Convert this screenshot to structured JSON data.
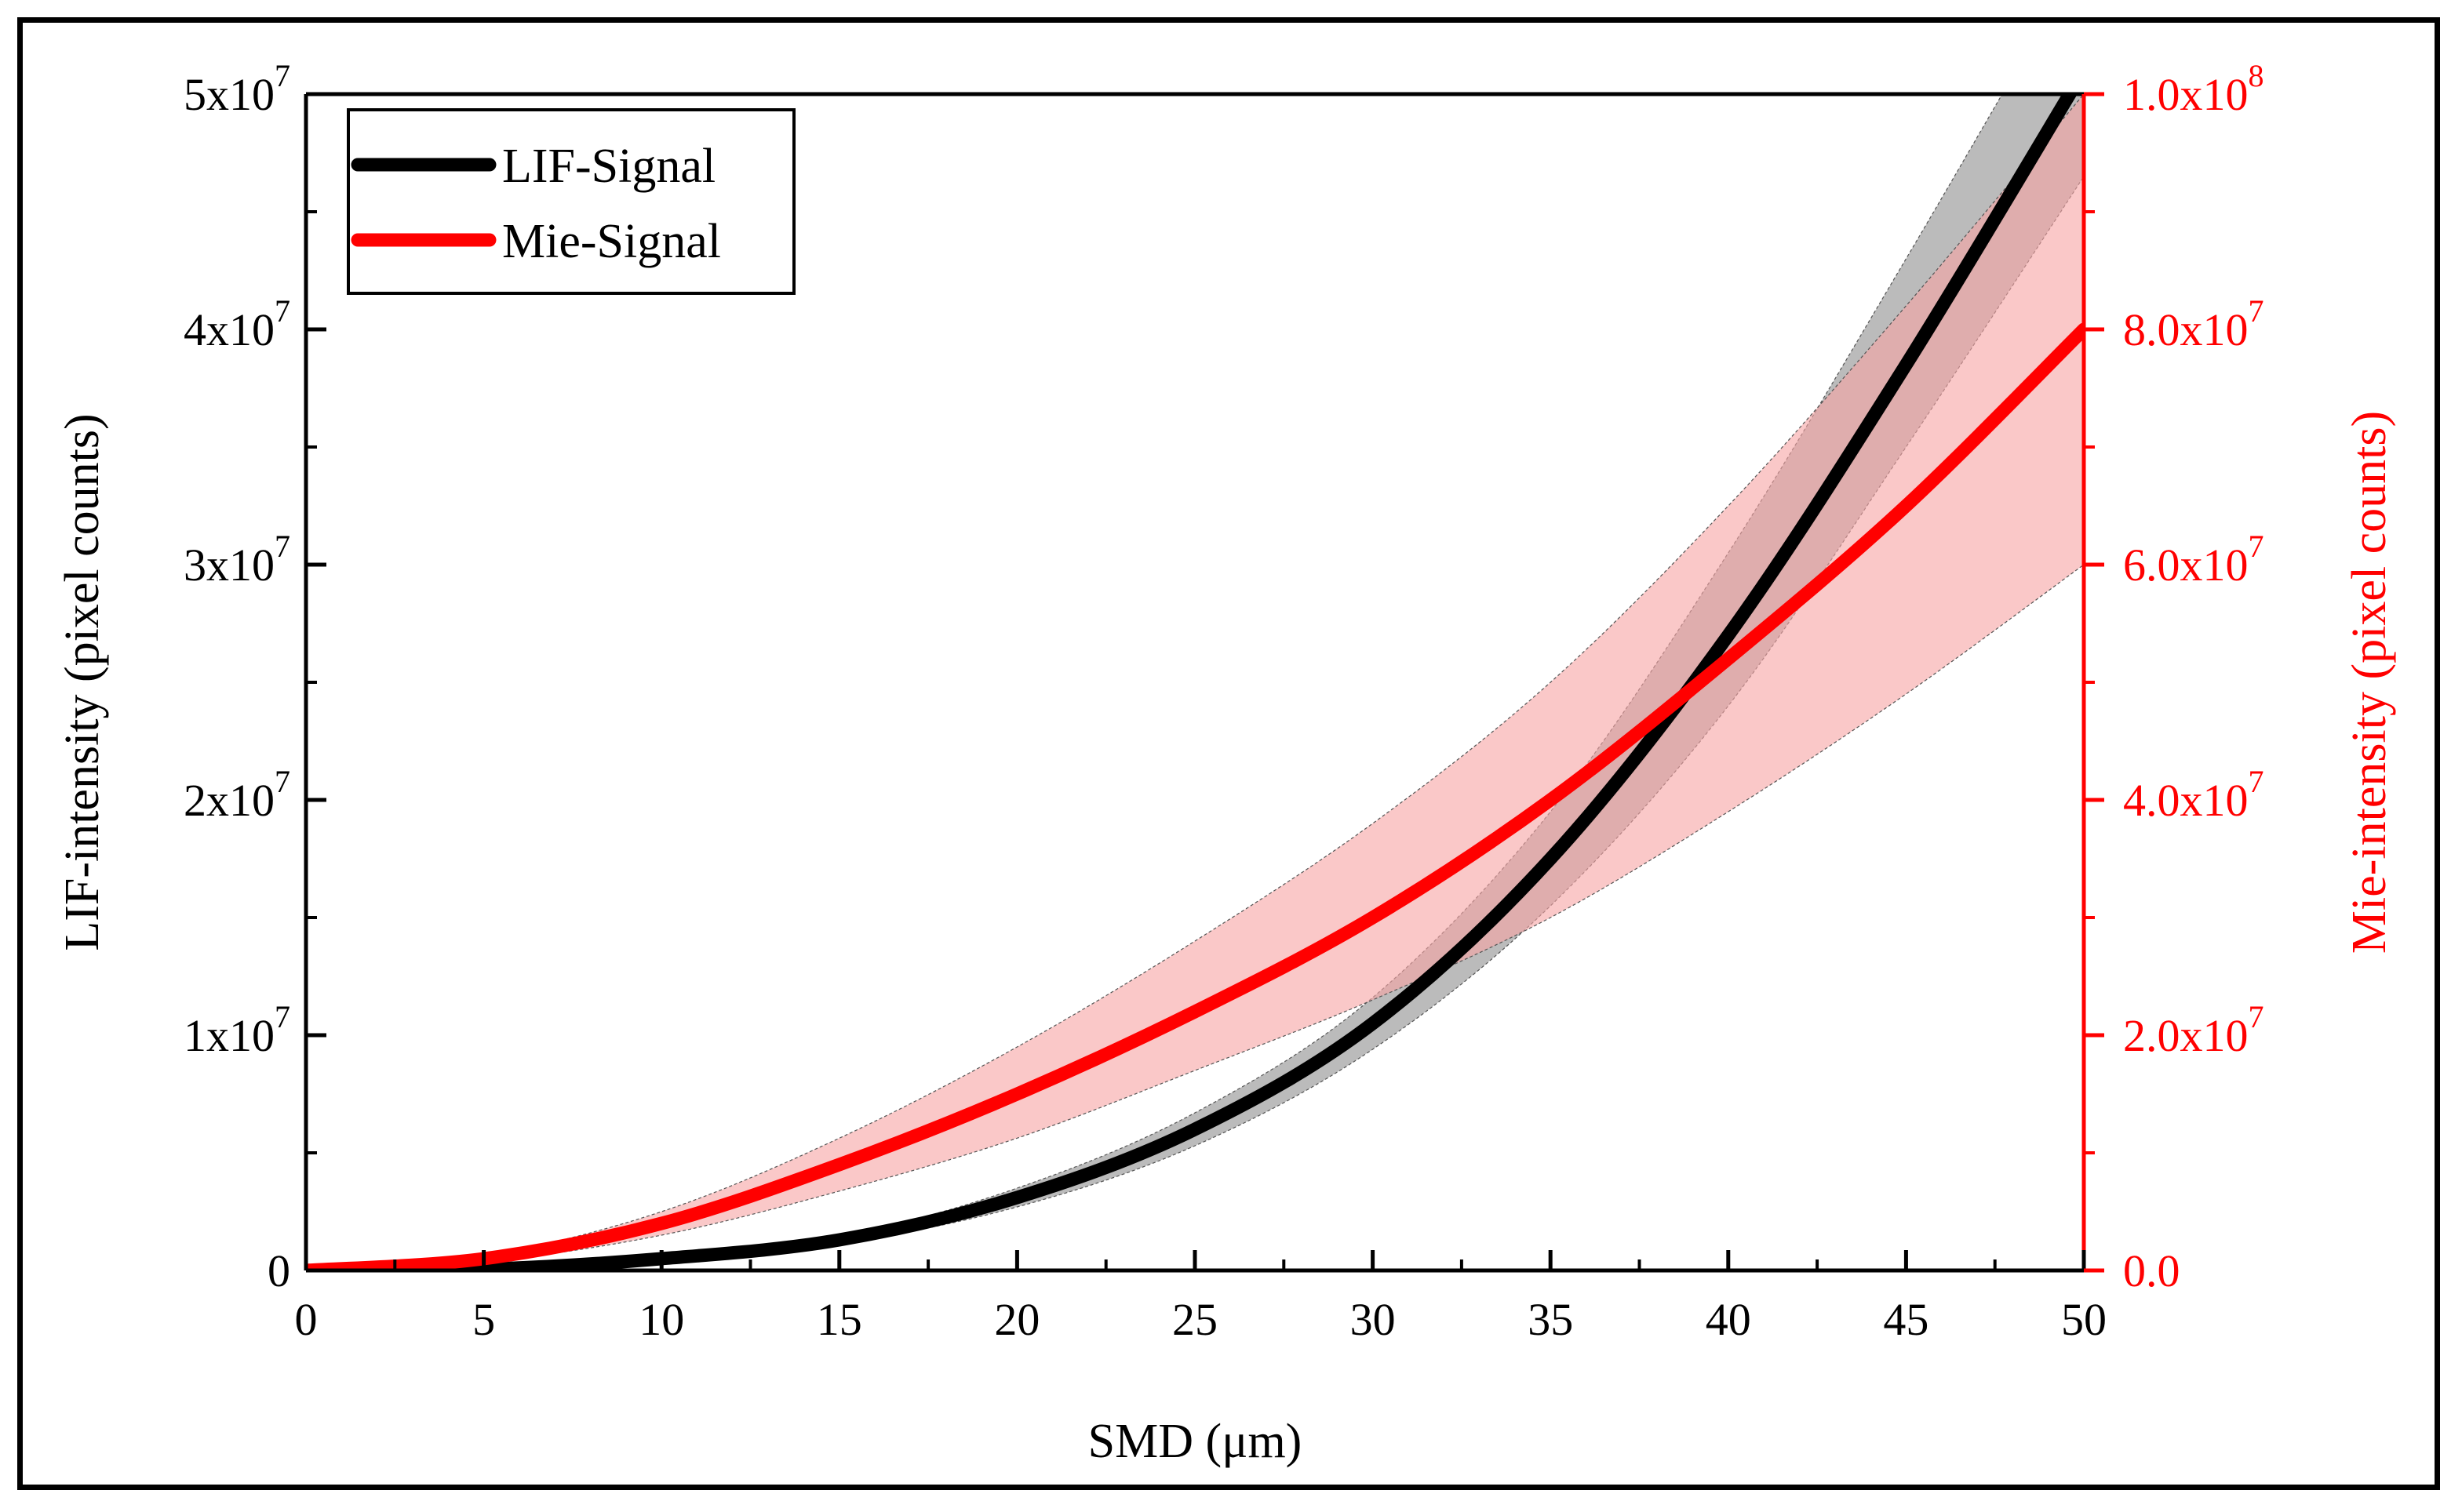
{
  "chart_data": {
    "type": "line",
    "x_axis": {
      "label": "SMD (μm)",
      "range": [
        0,
        50
      ],
      "ticks": [
        0,
        5,
        10,
        15,
        20,
        25,
        30,
        35,
        40,
        45,
        50
      ],
      "tick_labels": [
        "0",
        "5",
        "10",
        "15",
        "20",
        "25",
        "30",
        "35",
        "40",
        "45",
        "50"
      ]
    },
    "y_left_axis": {
      "label": "LIF-intensity (pixel counts)",
      "range": [
        0,
        50000000
      ],
      "ticks": [
        0,
        10000000,
        20000000,
        30000000,
        40000000,
        50000000
      ],
      "tick_labels": [
        {
          "mantissa": "0",
          "exp": ""
        },
        {
          "mantissa": "1x10",
          "exp": "7"
        },
        {
          "mantissa": "2x10",
          "exp": "7"
        },
        {
          "mantissa": "3x10",
          "exp": "7"
        },
        {
          "mantissa": "4x10",
          "exp": "7"
        },
        {
          "mantissa": "5x10",
          "exp": "7"
        }
      ],
      "color": "#000000"
    },
    "y_right_axis": {
      "label": "Mie-intensity (pixel counts)",
      "range": [
        0,
        100000000
      ],
      "ticks": [
        0,
        20000000,
        40000000,
        60000000,
        80000000,
        100000000
      ],
      "tick_labels": [
        {
          "mantissa": "0.0",
          "exp": ""
        },
        {
          "mantissa": "2.0x10",
          "exp": "7"
        },
        {
          "mantissa": "4.0x10",
          "exp": "7"
        },
        {
          "mantissa": "6.0x10",
          "exp": "7"
        },
        {
          "mantissa": "8.0x10",
          "exp": "7"
        },
        {
          "mantissa": "1.0x10",
          "exp": "8"
        }
      ],
      "color": "#ff0000"
    },
    "series": [
      {
        "name": "LIF-Signal",
        "axis": "left",
        "color": "#000000",
        "band_color": "#b4b4b4",
        "x": [
          0,
          5,
          10,
          15,
          20,
          25,
          30,
          35,
          40,
          45,
          50
        ],
        "y": [
          0,
          50000,
          500000,
          1300000,
          3100000,
          6000000,
          10500000,
          17500000,
          27000000,
          38500000,
          51000000
        ],
        "y_lower": [
          0,
          40000,
          420000,
          1150000,
          2700000,
          5300000,
          9400000,
          15500000,
          24000000,
          35000000,
          46500000
        ],
        "y_upper": [
          0,
          60000,
          580000,
          1450000,
          3500000,
          6700000,
          11600000,
          19500000,
          30500000,
          43000000,
          56000000
        ]
      },
      {
        "name": "Mie-Signal",
        "axis": "right",
        "color": "#ff0000",
        "band_color": "#f7a3a3",
        "x": [
          0,
          5,
          10,
          15,
          20,
          25,
          30,
          35,
          40,
          45,
          50
        ],
        "y": [
          0,
          1000000,
          4000000,
          9000000,
          15000000,
          22000000,
          30000000,
          40000000,
          52000000,
          65000000,
          80000000
        ],
        "y_lower": [
          0,
          750000,
          3000000,
          6750000,
          11250000,
          17000000,
          23000000,
          30000000,
          39000000,
          49000000,
          60000000
        ],
        "y_upper": [
          0,
          1250000,
          5000000,
          11250000,
          19000000,
          28000000,
          38000000,
          50000000,
          65000000,
          82000000,
          100000000
        ]
      }
    ],
    "legend": {
      "position": "top-left",
      "entries": [
        "LIF-Signal",
        "Mie-Signal"
      ]
    },
    "grid": false
  }
}
